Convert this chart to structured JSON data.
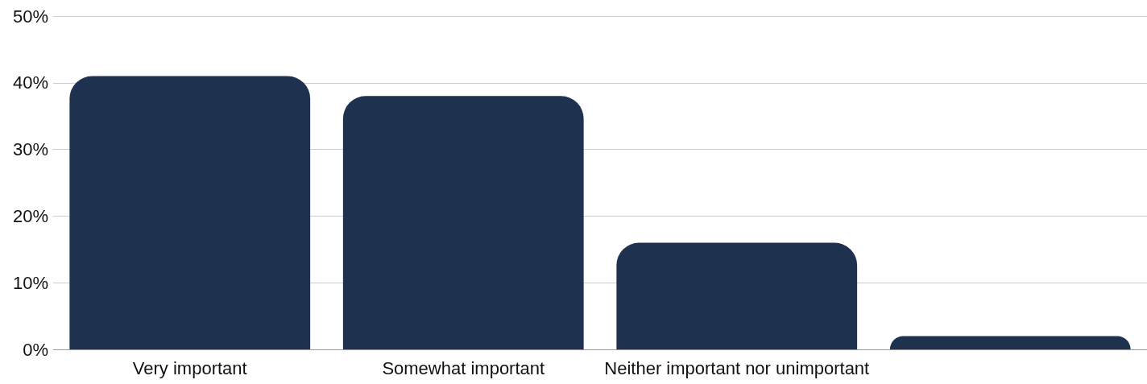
{
  "chart_data": {
    "type": "bar",
    "categories": [
      "Very important",
      "Somewhat important",
      "Neither important nor unimportant",
      null
    ],
    "values": [
      41,
      38,
      16,
      2
    ],
    "color": "#1e3250",
    "ylim": [
      0,
      50
    ],
    "yticks": [
      {
        "value": 0,
        "label": "0%"
      },
      {
        "value": 10,
        "label": "10%"
      },
      {
        "value": 20,
        "label": "20%"
      },
      {
        "value": 30,
        "label": "30%"
      },
      {
        "value": 40,
        "label": "40%"
      },
      {
        "value": 50,
        "label": "50%"
      }
    ],
    "grid": "y"
  }
}
